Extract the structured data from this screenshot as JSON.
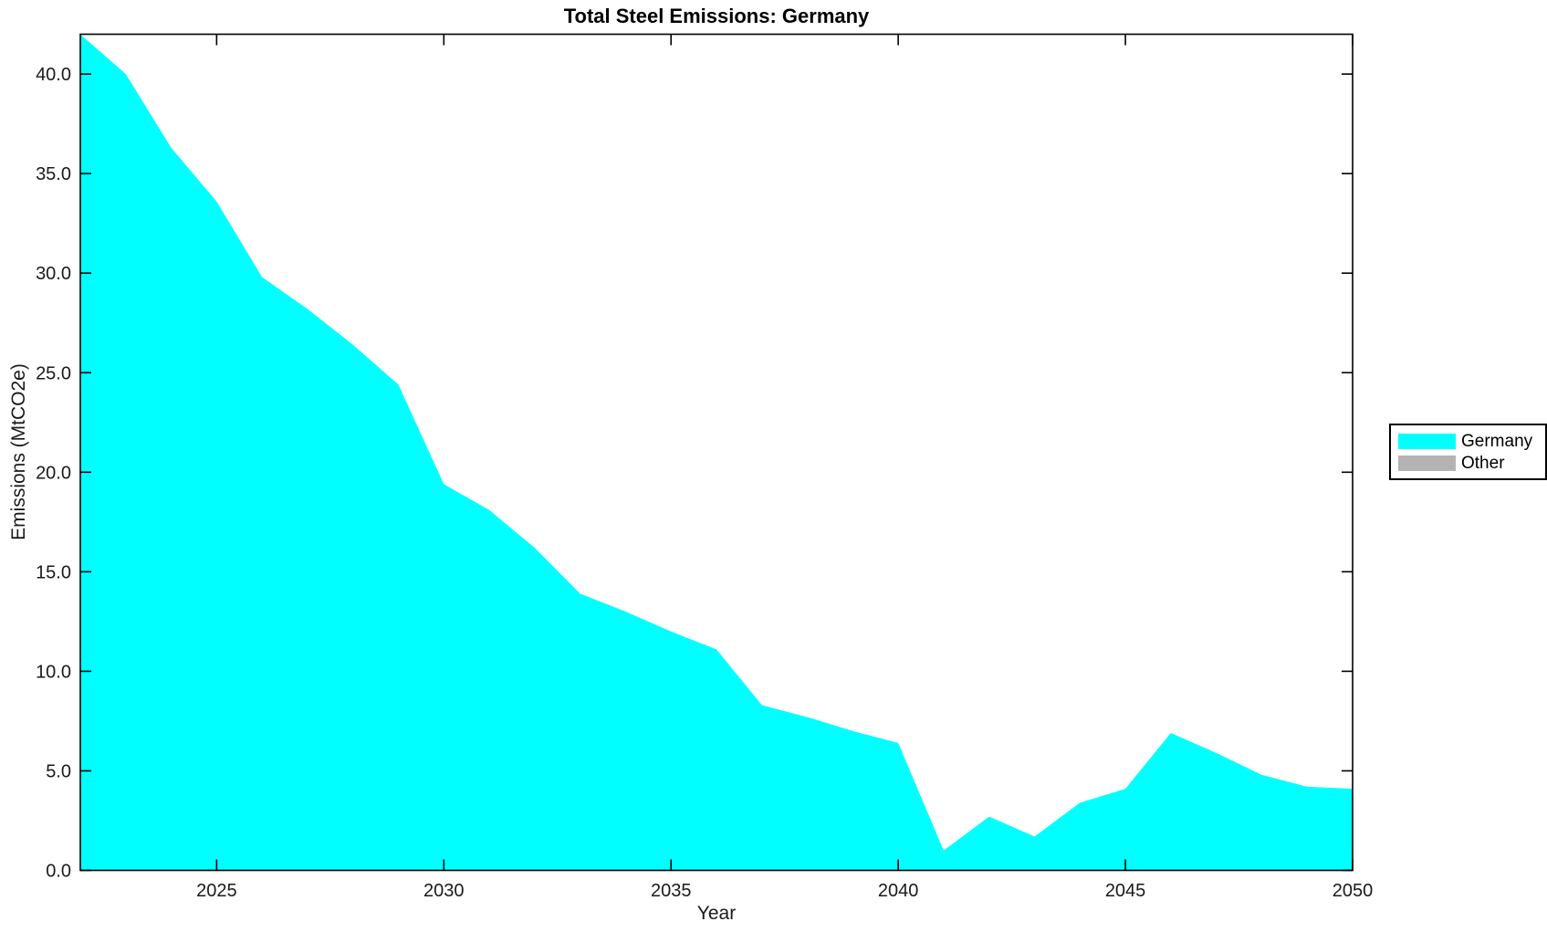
{
  "chart_data": {
    "type": "area",
    "title": "Total Steel Emissions: Germany",
    "xlabel": "Year",
    "ylabel": "Emissions (MtCO2e)",
    "xlim": [
      2022,
      2050
    ],
    "ylim": [
      0,
      42
    ],
    "grid": false,
    "legend_position": "outside-right",
    "x_ticks": {
      "values": [
        2025,
        2030,
        2035,
        2040,
        2045,
        2050
      ],
      "labels": [
        "2025",
        "2030",
        "2035",
        "2040",
        "2045",
        "2050"
      ]
    },
    "y_ticks": {
      "values": [
        0,
        5,
        10,
        15,
        20,
        25,
        30,
        35,
        40
      ],
      "labels": [
        "0.0",
        "5.0",
        "10.0",
        "15.0",
        "20.0",
        "25.0",
        "30.0",
        "35.0",
        "40.0"
      ]
    },
    "x": [
      2022,
      2023,
      2024,
      2025,
      2026,
      2027,
      2028,
      2029,
      2030,
      2031,
      2032,
      2033,
      2034,
      2035,
      2036,
      2037,
      2038,
      2039,
      2040,
      2041,
      2042,
      2043,
      2044,
      2045,
      2046,
      2047,
      2048,
      2049,
      2050
    ],
    "series": [
      {
        "name": "Germany",
        "color": "#00FFFF",
        "values": [
          42.0,
          40.0,
          36.3,
          33.6,
          29.8,
          28.2,
          26.4,
          24.4,
          19.4,
          18.1,
          16.2,
          13.9,
          13.0,
          12.0,
          11.1,
          8.3,
          7.7,
          7.0,
          6.4,
          1.0,
          2.7,
          1.7,
          3.4,
          4.1,
          6.9,
          5.9,
          4.8,
          4.2,
          4.1
        ]
      },
      {
        "name": "Other",
        "color": "#B3B3B3",
        "values": [
          0,
          0,
          0,
          0,
          0,
          0,
          0,
          0,
          0,
          0,
          0,
          0,
          0,
          0,
          0,
          0,
          0,
          0,
          0,
          0,
          0,
          0,
          0,
          0,
          0,
          0,
          0,
          0,
          0
        ]
      }
    ]
  }
}
